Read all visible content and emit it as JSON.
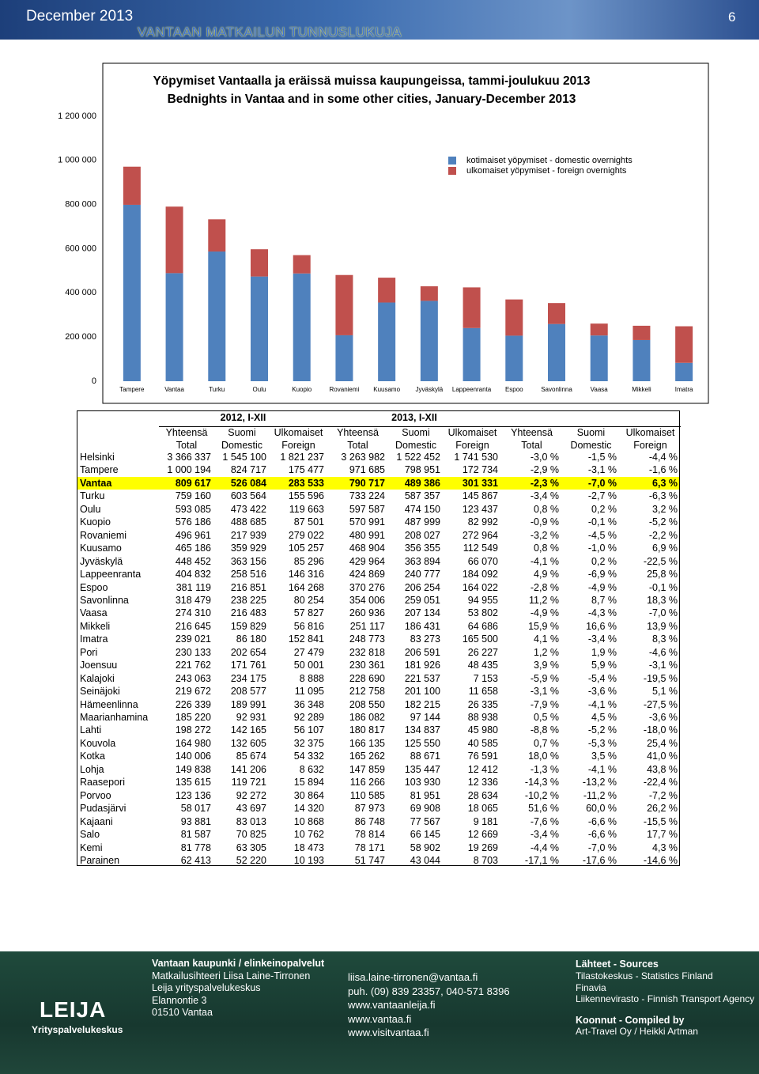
{
  "header": {
    "left": "December 2013",
    "page": "6",
    "title": "VANTAAN MATKAILUN TUNNUSLUKUJA"
  },
  "chart_data": {
    "type": "bar",
    "stacked": true,
    "title": "Yöpymiset Vantaalla ja eräissä muissa kaupungeissa, tammi-joulukuu 2013",
    "subtitle": "Bednights in Vantaa and in some other cities, January-December 2013",
    "categories": [
      "Tampere",
      "Vantaa",
      "Turku",
      "Oulu",
      "Kuopio",
      "Rovaniemi",
      "Kuusamo",
      "Jyväskylä",
      "Lappeenranta",
      "Espoo",
      "Savonlinna",
      "Vaasa",
      "Mikkeli",
      "Imatra"
    ],
    "series": [
      {
        "name": "kotimaiset yöpymiset - domestic overnights",
        "color": "#4f81bd",
        "values": [
          798951,
          489386,
          587357,
          474150,
          487999,
          208027,
          356355,
          363894,
          240777,
          206254,
          259051,
          207134,
          186431,
          83273
        ]
      },
      {
        "name": "ulkomaiset yöpymiset - foreign overnights",
        "color": "#c0504d",
        "values": [
          172734,
          301331,
          145867,
          123437,
          82992,
          272964,
          112549,
          66070,
          184092,
          164022,
          94955,
          53802,
          64686,
          165500
        ]
      }
    ],
    "ylim": [
      0,
      1200000
    ],
    "yticks": [
      0,
      {
        "value": 200000,
        "label": "200 000"
      },
      {
        "value": 400000,
        "label": "400 000"
      },
      {
        "value": 600000,
        "label": "600 000"
      },
      {
        "value": 800000,
        "label": "800 000"
      },
      {
        "value": 1000000,
        "label": "1 000 000"
      },
      {
        "value": 1200000,
        "label": "1 200 000"
      }
    ],
    "grid": false,
    "legend": "upper right"
  },
  "table": {
    "groups": [
      "2012, I-XII",
      "2013, I-XII"
    ],
    "columns": [
      {
        "fi": "Yhteensä",
        "en": "Total"
      },
      {
        "fi": "Suomi",
        "en": "Domestic"
      },
      {
        "fi": "Ulkomaiset",
        "en": "Foreign"
      },
      {
        "fi": "Yhteensä",
        "en": "Total"
      },
      {
        "fi": "Suomi",
        "en": "Domestic"
      },
      {
        "fi": "Ulkomaiset",
        "en": "Foreign"
      },
      {
        "fi": "Yhteensä",
        "en": "Total"
      },
      {
        "fi": "Suomi",
        "en": "Domestic"
      },
      {
        "fi": "Ulkomaiset",
        "en": "Foreign"
      }
    ],
    "rows": [
      [
        "Helsinki",
        "3 366 337",
        "1 545 100",
        "1 821 237",
        "3 263 982",
        "1 522 452",
        "1 741 530",
        "-3,0 %",
        "-1,5 %",
        "-4,4 %"
      ],
      [
        "Tampere",
        "1 000 194",
        "824 717",
        "175 477",
        "971 685",
        "798 951",
        "172 734",
        "-2,9 %",
        "-3,1 %",
        "-1,6 %"
      ],
      [
        "Vantaa",
        "809 617",
        "526 084",
        "283 533",
        "790 717",
        "489 386",
        "301 331",
        "-2,3 %",
        "-7,0 %",
        "6,3 %"
      ],
      [
        "Turku",
        "759 160",
        "603 564",
        "155 596",
        "733 224",
        "587 357",
        "145 867",
        "-3,4 %",
        "-2,7 %",
        "-6,3 %"
      ],
      [
        "Oulu",
        "593 085",
        "473 422",
        "119 663",
        "597 587",
        "474 150",
        "123 437",
        "0,8 %",
        "0,2 %",
        "3,2 %"
      ],
      [
        "Kuopio",
        "576 186",
        "488 685",
        "87 501",
        "570 991",
        "487 999",
        "82 992",
        "-0,9 %",
        "-0,1 %",
        "-5,2 %"
      ],
      [
        "Rovaniemi",
        "496 961",
        "217 939",
        "279 022",
        "480 991",
        "208 027",
        "272 964",
        "-3,2 %",
        "-4,5 %",
        "-2,2 %"
      ],
      [
        "Kuusamo",
        "465 186",
        "359 929",
        "105 257",
        "468 904",
        "356 355",
        "112 549",
        "0,8 %",
        "-1,0 %",
        "6,9 %"
      ],
      [
        "Jyväskylä",
        "448 452",
        "363 156",
        "85 296",
        "429 964",
        "363 894",
        "66 070",
        "-4,1 %",
        "0,2 %",
        "-22,5 %"
      ],
      [
        "Lappeenranta",
        "404 832",
        "258 516",
        "146 316",
        "424 869",
        "240 777",
        "184 092",
        "4,9 %",
        "-6,9 %",
        "25,8 %"
      ],
      [
        "Espoo",
        "381 119",
        "216 851",
        "164 268",
        "370 276",
        "206 254",
        "164 022",
        "-2,8 %",
        "-4,9 %",
        "-0,1 %"
      ],
      [
        "Savonlinna",
        "318 479",
        "238 225",
        "80 254",
        "354 006",
        "259 051",
        "94 955",
        "11,2 %",
        "8,7 %",
        "18,3 %"
      ],
      [
        "Vaasa",
        "274 310",
        "216 483",
        "57 827",
        "260 936",
        "207 134",
        "53 802",
        "-4,9 %",
        "-4,3 %",
        "-7,0 %"
      ],
      [
        "Mikkeli",
        "216 645",
        "159 829",
        "56 816",
        "251 117",
        "186 431",
        "64 686",
        "15,9 %",
        "16,6 %",
        "13,9 %"
      ],
      [
        "Imatra",
        "239 021",
        "86 180",
        "152 841",
        "248 773",
        "83 273",
        "165 500",
        "4,1 %",
        "-3,4 %",
        "8,3 %"
      ],
      [
        "Pori",
        "230 133",
        "202 654",
        "27 479",
        "232 818",
        "206 591",
        "26 227",
        "1,2 %",
        "1,9 %",
        "-4,6 %"
      ],
      [
        "Joensuu",
        "221 762",
        "171 761",
        "50 001",
        "230 361",
        "181 926",
        "48 435",
        "3,9 %",
        "5,9 %",
        "-3,1 %"
      ],
      [
        "Kalajoki",
        "243 063",
        "234 175",
        "8 888",
        "228 690",
        "221 537",
        "7 153",
        "-5,9 %",
        "-5,4 %",
        "-19,5 %"
      ],
      [
        "Seinäjoki",
        "219 672",
        "208 577",
        "11 095",
        "212 758",
        "201 100",
        "11 658",
        "-3,1 %",
        "-3,6 %",
        "5,1 %"
      ],
      [
        "Hämeenlinna",
        "226 339",
        "189 991",
        "36 348",
        "208 550",
        "182 215",
        "26 335",
        "-7,9 %",
        "-4,1 %",
        "-27,5 %"
      ],
      [
        "Maarianhamina",
        "185 220",
        "92 931",
        "92 289",
        "186 082",
        "97 144",
        "88 938",
        "0,5 %",
        "4,5 %",
        "-3,6 %"
      ],
      [
        "Lahti",
        "198 272",
        "142 165",
        "56 107",
        "180 817",
        "134 837",
        "45 980",
        "-8,8 %",
        "-5,2 %",
        "-18,0 %"
      ],
      [
        "Kouvola",
        "164 980",
        "132 605",
        "32 375",
        "166 135",
        "125 550",
        "40 585",
        "0,7 %",
        "-5,3 %",
        "25,4 %"
      ],
      [
        "Kotka",
        "140 006",
        "85 674",
        "54 332",
        "165 262",
        "88 671",
        "76 591",
        "18,0 %",
        "3,5 %",
        "41,0 %"
      ],
      [
        "Lohja",
        "149 838",
        "141 206",
        "8 632",
        "147 859",
        "135 447",
        "12 412",
        "-1,3 %",
        "-4,1 %",
        "43,8 %"
      ],
      [
        "Raasepori",
        "135 615",
        "119 721",
        "15 894",
        "116 266",
        "103 930",
        "12 336",
        "-14,3 %",
        "-13,2 %",
        "-22,4 %"
      ],
      [
        "Porvoo",
        "123 136",
        "92 272",
        "30 864",
        "110 585",
        "81 951",
        "28 634",
        "-10,2 %",
        "-11,2 %",
        "-7,2 %"
      ],
      [
        "Pudasjärvi",
        "58 017",
        "43 697",
        "14 320",
        "87 973",
        "69 908",
        "18 065",
        "51,6 %",
        "60,0 %",
        "26,2 %"
      ],
      [
        "Kajaani",
        "93 881",
        "83 013",
        "10 868",
        "86 748",
        "77 567",
        "9 181",
        "-7,6 %",
        "-6,6 %",
        "-15,5 %"
      ],
      [
        "Salo",
        "81 587",
        "70 825",
        "10 762",
        "78 814",
        "66 145",
        "12 669",
        "-3,4 %",
        "-6,6 %",
        "17,7 %"
      ],
      [
        "Kemi",
        "81 778",
        "63 305",
        "18 473",
        "78 171",
        "58 902",
        "19 269",
        "-4,4 %",
        "-7,0 %",
        "4,3 %"
      ],
      [
        "Parainen",
        "62 413",
        "52 220",
        "10 193",
        "51 747",
        "43 044",
        "8 703",
        "-17,1 %",
        "-17,6 %",
        "-14,6 %"
      ]
    ]
  },
  "footer": {
    "logo": {
      "name": "LEIJA",
      "sub": "Yrityspalvelukeskus"
    },
    "contact": [
      "Vantaan kaupunki / elinkeinopalvelut",
      "Matkailusihteeri Liisa Laine-Tirronen",
      "Leija yrityspalvelukeskus",
      "Elannontie 3",
      "01510 Vantaa"
    ],
    "links": [
      "liisa.laine-tirronen@vantaa.fi",
      "puh. (09) 839 23357, 040-571 8396",
      "www.vantaanleija.fi",
      "www.vantaa.fi",
      "www.visitvantaa.fi"
    ],
    "sources_title": "Lähteet - Sources",
    "sources": [
      "Tilastokeskus - Statistics Finland",
      "Finavia",
      "Liikennevirasto - Finnish Transport Agency"
    ],
    "compiled_title": "Koonnut - Compiled by",
    "compiled": "Art-Travel Oy / Heikki Artman"
  }
}
